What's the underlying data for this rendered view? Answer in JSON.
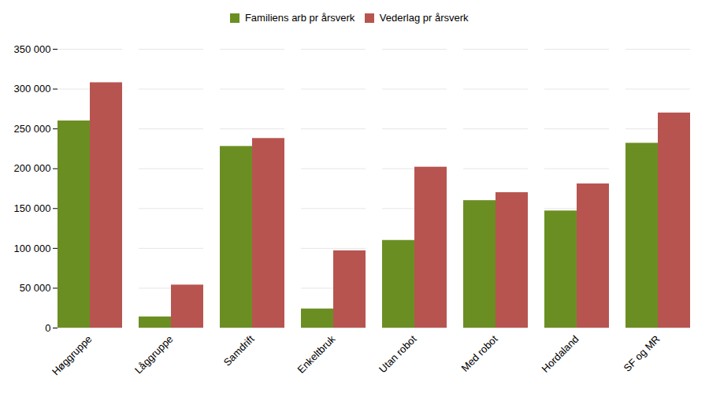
{
  "chart_data": {
    "type": "bar",
    "categories": [
      "Høggruppe",
      "Låggruppe",
      "Samdrift",
      "Enkeltbruk",
      "Utan robot",
      "Med robot",
      "Hordaland",
      "SF og MR"
    ],
    "series": [
      {
        "name": "Familiens arb pr årsverk",
        "color": "#6B8E23",
        "values": [
          260000,
          14000,
          228000,
          24000,
          110000,
          160000,
          147000,
          232000
        ]
      },
      {
        "name": "Vederlag pr årsverk",
        "color": "#B85450",
        "values": [
          308000,
          54000,
          238000,
          97000,
          202000,
          170000,
          181000,
          270000
        ]
      }
    ],
    "ylim": [
      0,
      350000
    ],
    "yticks": [
      0,
      {
        "value": 50000,
        "label": "50 000"
      },
      {
        "value": 100000,
        "label": "100 000"
      },
      {
        "value": 150000,
        "label": "150 000"
      },
      {
        "value": 200000,
        "label": "200 000"
      },
      {
        "value": 250000,
        "label": "250 000"
      },
      {
        "value": 300000,
        "label": "300 000"
      },
      {
        "value": 350000,
        "label": "350 000"
      }
    ],
    "grid": true,
    "legend": "upper center"
  }
}
